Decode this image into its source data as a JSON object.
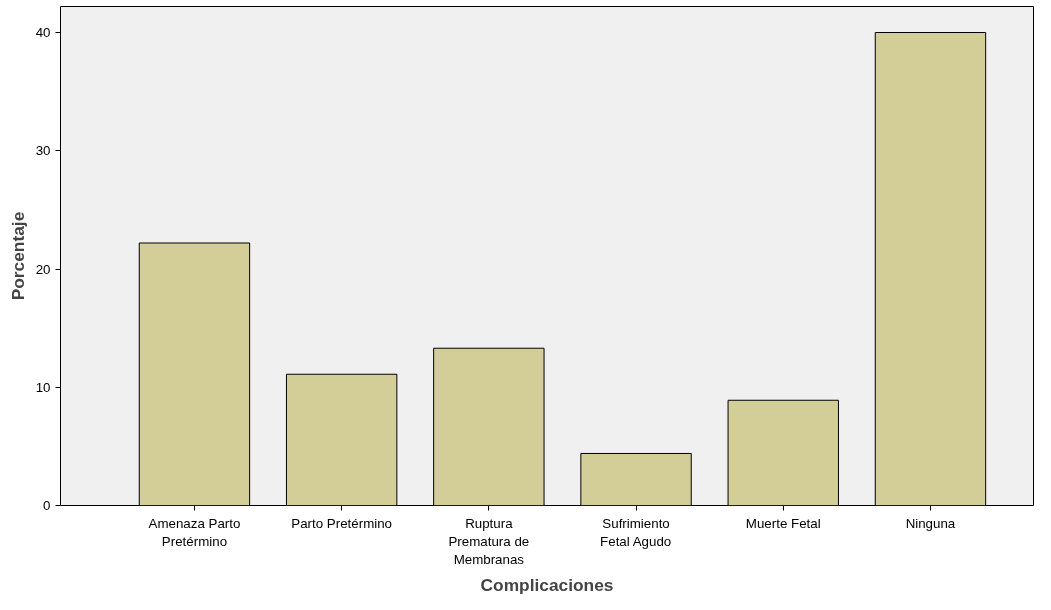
{
  "chart_data": {
    "type": "bar",
    "xlabel": "Complicaciones",
    "ylabel": "Porcentaje",
    "categories": [
      "Amenaza Parto Pretérmino",
      "Parto Pretérmino",
      "Ruptura Prematura de Membranas",
      "Sufrimiento Fetal Agudo",
      "Muerte Fetal",
      "Ninguna"
    ],
    "values": [
      22.2,
      11.1,
      13.3,
      4.4,
      8.9,
      40.0
    ],
    "color": "#d3ce97",
    "ylim": [
      0,
      42.2
    ],
    "yticks": [
      0,
      10,
      20,
      30,
      40
    ],
    "grid": false
  }
}
